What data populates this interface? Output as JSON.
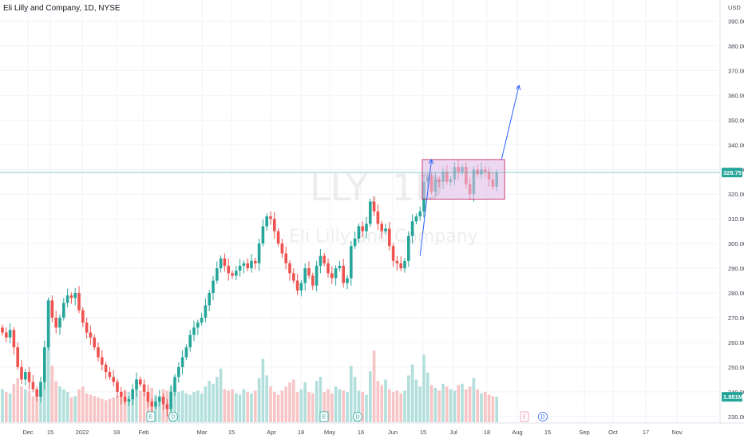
{
  "header": {
    "title": "Eli Lilly and Company, 1D, NYSE"
  },
  "watermark": {
    "symbol": "LLY, 1D",
    "name": "Eli Lilly and Company"
  },
  "colors": {
    "up": "#26a69a",
    "down": "#ef5350",
    "vol_up": "#b2dfdb",
    "vol_down": "#f7c5c5",
    "box_fill": "#e1bee7",
    "box_stroke": "#c2185b",
    "arrow": "#2962ff",
    "price_line": "#26a69a"
  },
  "chart_data": {
    "type": "candlestick",
    "symbol": "LLY",
    "currency": "USD",
    "interval": "1D",
    "exchange": "NYSE",
    "y_ticks": [
      "230.00",
      "240.00",
      "250.00",
      "260.00",
      "270.00",
      "280.00",
      "290.00",
      "300.00",
      "310.00",
      "320.00",
      "330.00",
      "340.00",
      "350.00",
      "360.00",
      "370.00",
      "380.00",
      "390.00"
    ],
    "ylim": [
      228,
      396
    ],
    "x_ticks": [
      "Dec",
      "15",
      "2022",
      "18",
      "Feb",
      "Mar",
      "15",
      "Apr",
      "18",
      "May",
      "16",
      "Jun",
      "15",
      "Jul",
      "18",
      "Aug",
      "15",
      "Sep",
      "Oct",
      "17",
      "Nov"
    ],
    "last_price": "328.75",
    "volume_tag": "1.851M",
    "events": [
      "E",
      "D",
      "E",
      "D",
      "E",
      "D"
    ],
    "closes": [
      264,
      262,
      265,
      258,
      250,
      245,
      248,
      244,
      241,
      238,
      244,
      258,
      277,
      270,
      266,
      270,
      276,
      279,
      278,
      280,
      273,
      268,
      264,
      262,
      258,
      254,
      251,
      248,
      246,
      244,
      240,
      238,
      236,
      237,
      241,
      245,
      243,
      240,
      236,
      234,
      236,
      238,
      235,
      233,
      240,
      246,
      250,
      254,
      258,
      263,
      266,
      268,
      270,
      275,
      280,
      285,
      290,
      294,
      291,
      288,
      287,
      289,
      291,
      292,
      290,
      293,
      292,
      300,
      307,
      311,
      310,
      305,
      300,
      296,
      292,
      288,
      285,
      281,
      284,
      290,
      287,
      283,
      291,
      295,
      292,
      288,
      286,
      290,
      291,
      284,
      286,
      299,
      302,
      307,
      305,
      308,
      317,
      313,
      308,
      305,
      306,
      299,
      293,
      292,
      290,
      293,
      303,
      309,
      311,
      313,
      325,
      327,
      321,
      326,
      325,
      329,
      325,
      326,
      331,
      329,
      331,
      324,
      320,
      330,
      328,
      330,
      329,
      326,
      323,
      328.75
    ],
    "volumes": [
      2.4,
      2.2,
      2.1,
      2.8,
      3.2,
      2.6,
      2.4,
      2.3,
      1.9,
      1.8,
      2.2,
      3.1,
      5.8,
      4.1,
      3.0,
      2.6,
      2.4,
      2.2,
      1.8,
      1.9,
      2.4,
      2.6,
      2.1,
      2.0,
      1.9,
      1.8,
      1.7,
      1.6,
      1.7,
      1.8,
      1.9,
      2.1,
      2.3,
      2.2,
      2.4,
      3.1,
      2.3,
      2.2,
      2.1,
      2.5,
      2.0,
      1.9,
      2.4,
      2.3,
      2.6,
      2.8,
      2.2,
      2.3,
      2.1,
      2.0,
      2.2,
      2.3,
      2.1,
      2.6,
      3.0,
      2.8,
      3.3,
      3.9,
      2.4,
      2.3,
      2.4,
      2.1,
      2.0,
      2.4,
      2.2,
      2.1,
      2.3,
      3.2,
      4.6,
      3.4,
      2.6,
      2.2,
      2.0,
      2.3,
      2.6,
      2.9,
      3.1,
      2.2,
      2.4,
      2.9,
      2.2,
      2.1,
      3.0,
      3.3,
      2.2,
      2.4,
      2.1,
      2.6,
      2.4,
      2.3,
      2.2,
      4.1,
      3.3,
      2.3,
      2.2,
      2.0,
      3.7,
      5.2,
      3.0,
      2.7,
      3.1,
      2.4,
      2.2,
      2.3,
      2.1,
      2.3,
      3.4,
      4.2,
      3.1,
      2.6,
      4.9,
      3.6,
      2.7,
      2.5,
      2.3,
      2.8,
      2.6,
      2.4,
      2.3,
      2.7,
      2.8,
      2.4,
      2.6,
      3.2,
      2.4,
      2.1,
      2.2,
      2.0,
      1.9,
      1.85
    ],
    "annotations": {
      "consolidation_box": {
        "price_low": 318,
        "price_high": 334
      },
      "arrows": [
        {
          "from_price": 295,
          "to_price": 334
        },
        {
          "from_price": 334,
          "to_price": 364
        }
      ]
    }
  }
}
